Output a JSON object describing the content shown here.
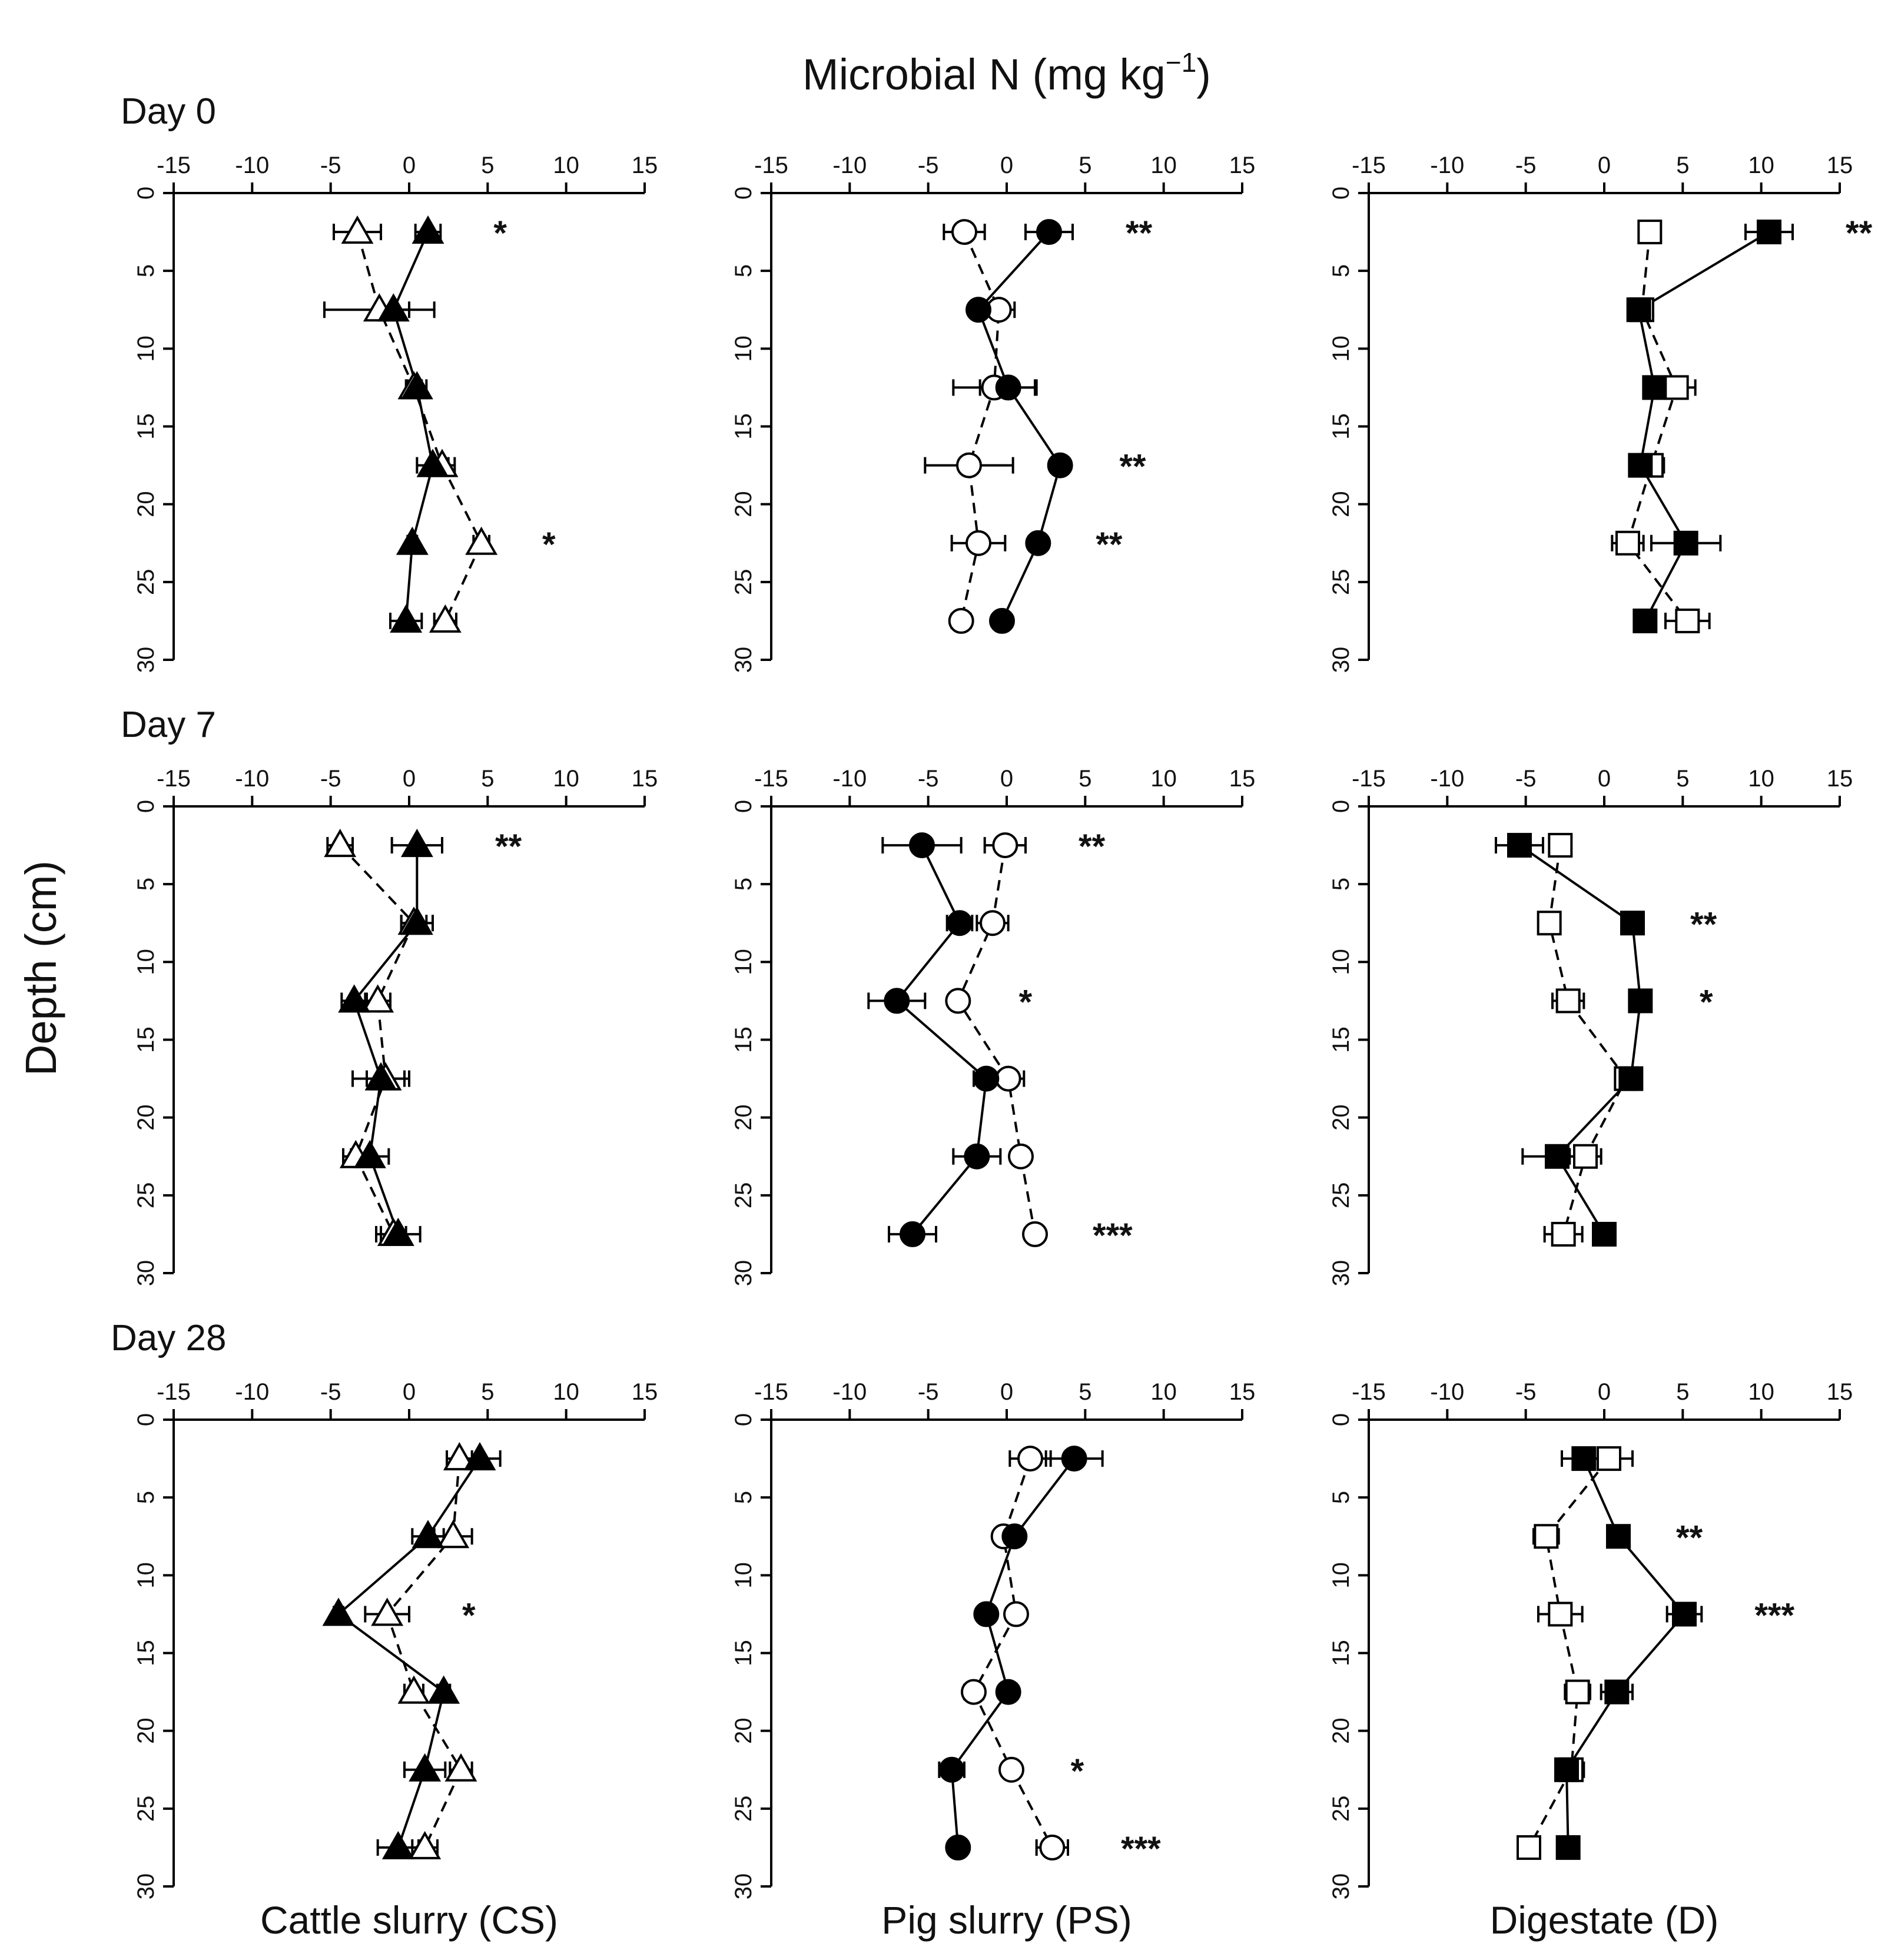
{
  "chart_data": {
    "type": "scatter",
    "title": "Microbial N (mg kg",
    "title_superscript": "−1",
    "title_close": ")",
    "ylabel": "Depth (cm)",
    "xlim": [
      -15,
      15
    ],
    "ylim": [
      0,
      30
    ],
    "x_ticks": [
      "-15",
      "-10",
      "-5",
      "0",
      "5",
      "10",
      "15"
    ],
    "y_ticks": [
      "0",
      "5",
      "10",
      "15",
      "20",
      "25",
      "30"
    ],
    "days": [
      "Day 0",
      "Day 7",
      "Day 28"
    ],
    "columns": [
      {
        "label": "Cattle slurry (CS)",
        "marker": "triangle"
      },
      {
        "label": "Pig slurry (PS)",
        "marker": "circle"
      },
      {
        "label": "Digestate (D)",
        "marker": "square"
      }
    ],
    "series_styles": {
      "filled": "solid line, filled marker",
      "open": "dashed line, open marker"
    },
    "panels": [
      {
        "day": 0,
        "column": 0,
        "filled": [
          {
            "x": 1.2,
            "y": 2.5,
            "err": 0.8
          },
          {
            "x": -1.0,
            "y": 7.5,
            "err": 1.0
          },
          {
            "x": 0.5,
            "y": 12.5,
            "err": 0.6
          },
          {
            "x": 1.5,
            "y": 17.5,
            "err": 1.0
          },
          {
            "x": 0.2,
            "y": 22.5,
            "err": 0.3
          },
          {
            "x": -0.2,
            "y": 27.5,
            "err": 1.0
          }
        ],
        "open": [
          {
            "x": -3.3,
            "y": 2.5,
            "err": 1.5
          },
          {
            "x": -1.9,
            "y": 7.5,
            "err": 3.5
          },
          {
            "x": 0.3,
            "y": 12.5,
            "err": 0.5
          },
          {
            "x": 2.1,
            "y": 17.5,
            "err": 0.8
          },
          {
            "x": 4.6,
            "y": 22.5,
            "err": 0.5
          },
          {
            "x": 2.3,
            "y": 27.5,
            "err": 0.7
          }
        ],
        "sig": [
          {
            "y": 2.5,
            "label": "*"
          },
          {
            "y": 22.5,
            "label": "*"
          }
        ]
      },
      {
        "day": 0,
        "column": 1,
        "filled": [
          {
            "x": 2.7,
            "y": 2.5,
            "err": 1.5
          },
          {
            "x": -1.8,
            "y": 7.5,
            "err": 0.3
          },
          {
            "x": 0.1,
            "y": 12.5,
            "err": 1.8
          },
          {
            "x": 3.4,
            "y": 17.5,
            "err": 0.4
          },
          {
            "x": 2.0,
            "y": 22.5,
            "err": 0.3
          },
          {
            "x": -0.3,
            "y": 27.5,
            "err": 0.4
          }
        ],
        "open": [
          {
            "x": -2.7,
            "y": 2.5,
            "err": 1.3
          },
          {
            "x": -0.5,
            "y": 7.5,
            "err": 1.0
          },
          {
            "x": -0.8,
            "y": 12.5,
            "err": 2.6
          },
          {
            "x": -2.4,
            "y": 17.5,
            "err": 2.8
          },
          {
            "x": -1.8,
            "y": 22.5,
            "err": 1.7
          },
          {
            "x": -2.9,
            "y": 27.5,
            "err": 0.6
          }
        ],
        "sig": [
          {
            "y": 2.5,
            "label": "**"
          },
          {
            "y": 17.5,
            "label": "**"
          },
          {
            "y": 22.5,
            "label": "**"
          }
        ]
      },
      {
        "day": 0,
        "column": 2,
        "filled": [
          {
            "x": 10.5,
            "y": 2.5,
            "err": 1.5
          },
          {
            "x": 2.2,
            "y": 7.5,
            "err": 0.5
          },
          {
            "x": 3.2,
            "y": 12.5,
            "err": 0.6
          },
          {
            "x": 2.3,
            "y": 17.5,
            "err": 0.6
          },
          {
            "x": 5.2,
            "y": 22.5,
            "err": 2.2
          },
          {
            "x": 2.6,
            "y": 27.5,
            "err": 0.4
          }
        ],
        "open": [
          {
            "x": 2.9,
            "y": 2.5,
            "err": 0.5
          },
          {
            "x": 2.4,
            "y": 7.5,
            "err": 0.5
          },
          {
            "x": 4.6,
            "y": 12.5,
            "err": 1.2
          },
          {
            "x": 3.0,
            "y": 17.5,
            "err": 0.8
          },
          {
            "x": 1.5,
            "y": 22.5,
            "err": 1.0
          },
          {
            "x": 5.3,
            "y": 27.5,
            "err": 1.4
          }
        ],
        "sig": [
          {
            "y": 2.5,
            "label": "**"
          }
        ]
      },
      {
        "day": 7,
        "column": 0,
        "filled": [
          {
            "x": 0.5,
            "y": 2.5,
            "err": 1.6
          },
          {
            "x": 0.5,
            "y": 7.5,
            "err": 1.0
          },
          {
            "x": -3.5,
            "y": 12.5,
            "err": 0.8
          },
          {
            "x": -1.8,
            "y": 17.5,
            "err": 1.8
          },
          {
            "x": -2.5,
            "y": 22.5,
            "err": 1.2
          },
          {
            "x": -0.7,
            "y": 27.5,
            "err": 1.4
          }
        ],
        "open": [
          {
            "x": -4.4,
            "y": 2.5,
            "err": 0.8
          },
          {
            "x": 0.3,
            "y": 7.5,
            "err": 0.8
          },
          {
            "x": -2.0,
            "y": 12.5,
            "err": 0.8
          },
          {
            "x": -1.5,
            "y": 17.5,
            "err": 1.2
          },
          {
            "x": -3.4,
            "y": 22.5,
            "err": 0.8
          },
          {
            "x": -1.0,
            "y": 27.5,
            "err": 0.8
          }
        ],
        "sig": [
          {
            "y": 2.5,
            "label": "**"
          }
        ]
      },
      {
        "day": 7,
        "column": 1,
        "filled": [
          {
            "x": -5.4,
            "y": 2.5,
            "err": 2.5
          },
          {
            "x": -3.0,
            "y": 7.5,
            "err": 0.8
          },
          {
            "x": -7.0,
            "y": 12.5,
            "err": 1.8
          },
          {
            "x": -1.3,
            "y": 17.5,
            "err": 0.8
          },
          {
            "x": -1.9,
            "y": 22.5,
            "err": 1.5
          },
          {
            "x": -6.0,
            "y": 27.5,
            "err": 1.5
          }
        ],
        "open": [
          {
            "x": -0.1,
            "y": 2.5,
            "err": 1.3
          },
          {
            "x": -0.9,
            "y": 7.5,
            "err": 1.0
          },
          {
            "x": -3.1,
            "y": 12.5,
            "err": 0.5
          },
          {
            "x": 0.1,
            "y": 17.5,
            "err": 1.0
          },
          {
            "x": 0.9,
            "y": 22.5,
            "err": 0.5
          },
          {
            "x": 1.8,
            "y": 27.5,
            "err": 0.3
          }
        ],
        "sig": [
          {
            "y": 2.5,
            "label": "**"
          },
          {
            "y": 12.5,
            "label": "*"
          },
          {
            "y": 27.5,
            "label": "***"
          }
        ]
      },
      {
        "day": 7,
        "column": 2,
        "filled": [
          {
            "x": -5.4,
            "y": 2.5,
            "err": 1.5
          },
          {
            "x": 1.8,
            "y": 7.5,
            "err": 0.3
          },
          {
            "x": 2.3,
            "y": 12.5,
            "err": 0.4
          },
          {
            "x": 1.7,
            "y": 17.5,
            "err": 0.5
          },
          {
            "x": -3.0,
            "y": 22.5,
            "err": 2.2
          },
          {
            "x": 0.0,
            "y": 27.5,
            "err": 0.3
          }
        ],
        "open": [
          {
            "x": -2.8,
            "y": 2.5,
            "err": 0.5
          },
          {
            "x": -3.5,
            "y": 7.5,
            "err": 0.4
          },
          {
            "x": -2.3,
            "y": 12.5,
            "err": 1.0
          },
          {
            "x": 1.4,
            "y": 17.5,
            "err": 0.6
          },
          {
            "x": -1.2,
            "y": 22.5,
            "err": 1.0
          },
          {
            "x": -2.6,
            "y": 27.5,
            "err": 1.2
          }
        ],
        "sig": [
          {
            "y": 7.5,
            "label": "**"
          },
          {
            "y": 12.5,
            "label": "*"
          }
        ]
      },
      {
        "day": 28,
        "column": 0,
        "filled": [
          {
            "x": 4.5,
            "y": 2.5,
            "err": 1.3
          },
          {
            "x": 1.2,
            "y": 7.5,
            "err": 1.0
          },
          {
            "x": -4.5,
            "y": 12.5,
            "err": 0.3
          },
          {
            "x": 2.2,
            "y": 17.5,
            "err": 0.4
          },
          {
            "x": 1.0,
            "y": 22.5,
            "err": 1.3
          },
          {
            "x": -0.7,
            "y": 27.5,
            "err": 1.3
          }
        ],
        "open": [
          {
            "x": 3.2,
            "y": 2.5,
            "err": 0.8
          },
          {
            "x": 2.8,
            "y": 7.5,
            "err": 1.2
          },
          {
            "x": -1.4,
            "y": 12.5,
            "err": 1.4
          },
          {
            "x": 0.3,
            "y": 17.5,
            "err": 0.6
          },
          {
            "x": 3.3,
            "y": 22.5,
            "err": 0.7
          },
          {
            "x": 1.0,
            "y": 27.5,
            "err": 0.8
          }
        ],
        "sig": [
          {
            "y": 12.5,
            "label": "*"
          }
        ]
      },
      {
        "day": 28,
        "column": 1,
        "filled": [
          {
            "x": 4.3,
            "y": 2.5,
            "err": 1.8
          },
          {
            "x": 0.5,
            "y": 7.5,
            "err": 0.4
          },
          {
            "x": -1.3,
            "y": 12.5,
            "err": 0.4
          },
          {
            "x": 0.1,
            "y": 17.5,
            "err": 0.3
          },
          {
            "x": -3.5,
            "y": 22.5,
            "err": 0.8
          },
          {
            "x": -3.1,
            "y": 27.5,
            "err": 0.3
          }
        ],
        "open": [
          {
            "x": 1.5,
            "y": 2.5,
            "err": 1.3
          },
          {
            "x": -0.2,
            "y": 7.5,
            "err": 0.5
          },
          {
            "x": 0.6,
            "y": 12.5,
            "err": 0.4
          },
          {
            "x": -2.1,
            "y": 17.5,
            "err": 0.6
          },
          {
            "x": 0.3,
            "y": 22.5,
            "err": 0.4
          },
          {
            "x": 2.9,
            "y": 27.5,
            "err": 1.0
          }
        ],
        "sig": [
          {
            "y": 22.5,
            "label": "*"
          },
          {
            "y": 27.5,
            "label": "***"
          }
        ]
      },
      {
        "day": 28,
        "column": 2,
        "filled": [
          {
            "x": -1.3,
            "y": 2.5,
            "err": 1.4
          },
          {
            "x": 0.9,
            "y": 7.5,
            "err": 0.3
          },
          {
            "x": 5.1,
            "y": 12.5,
            "err": 1.1
          },
          {
            "x": 0.8,
            "y": 17.5,
            "err": 1.0
          },
          {
            "x": -2.4,
            "y": 22.5,
            "err": 0.6
          },
          {
            "x": -2.3,
            "y": 27.5,
            "err": 0.5
          }
        ],
        "open": [
          {
            "x": 0.3,
            "y": 2.5,
            "err": 1.5
          },
          {
            "x": -3.7,
            "y": 7.5,
            "err": 0.8
          },
          {
            "x": -2.8,
            "y": 12.5,
            "err": 1.4
          },
          {
            "x": -1.7,
            "y": 17.5,
            "err": 0.8
          },
          {
            "x": -2.1,
            "y": 22.5,
            "err": 0.8
          },
          {
            "x": -4.8,
            "y": 27.5,
            "err": 0.5
          }
        ],
        "sig": [
          {
            "y": 7.5,
            "label": "**"
          },
          {
            "y": 12.5,
            "label": "***"
          }
        ]
      }
    ]
  }
}
